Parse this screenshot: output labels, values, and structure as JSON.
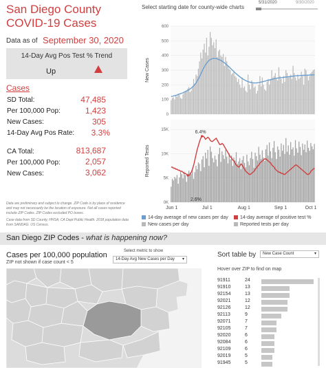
{
  "header": {
    "title_line1": "San Diego County",
    "title_line2": "COVID-19 Cases",
    "asof_label": "Data as of",
    "asof_date": "September 30, 2020"
  },
  "trend": {
    "label": "14-Day Avg Pos Test % Trend",
    "value": "Up",
    "arrow_icon": "triangle-up-icon"
  },
  "cases": {
    "heading": "Cases",
    "rows": [
      {
        "label": "SD Total:",
        "value": "47,485"
      },
      {
        "label": "Per 100,000 Pop:",
        "value": "1,423"
      },
      {
        "label": "New Cases:",
        "value": "305"
      },
      {
        "label": "14-Day Avg Pos Rate:",
        "value": "3.3%"
      }
    ],
    "ca_rows": [
      {
        "label": "CA Total:",
        "value": "813,687"
      },
      {
        "label": "Per 100,000 Pop:",
        "value": "2,057"
      },
      {
        "label": "New Cases:",
        "value": "3,062"
      }
    ]
  },
  "note": {
    "line1": "Data are preliminary and subject to change. ZIP Code is by place of residence and may not necessarily be the location of exposure. Not all cases reported include ZIP Codes. ZIP Codes excluded PO boxes.",
    "line2": "Case data from SD County, HHSA; CA Dept Public Health. 2018 population data from SANDAG. US Census."
  },
  "charts_header": {
    "title": "Select starting date for county-wide charts",
    "slider_start": "5/31/2020",
    "slider_end": "9/30/2020"
  },
  "colors": {
    "accent": "#d03e3e",
    "bar": "#b8b8b8",
    "blue": "#6b9fcf",
    "panel": "#e3e3e3"
  },
  "chart_data": [
    {
      "type": "bar",
      "ylabel": "New Cases",
      "ylim": [
        0,
        600
      ],
      "yticks": [
        "0",
        "100",
        "200",
        "300",
        "400",
        "500",
        "600"
      ],
      "x_start": "2020-05-31",
      "x_end": "2020-09-30",
      "values": [
        95,
        110,
        115,
        100,
        125,
        120,
        140,
        130,
        110,
        105,
        135,
        145,
        155,
        160,
        175,
        185,
        150,
        160,
        190,
        240,
        210,
        270,
        260,
        310,
        360,
        420,
        380,
        440,
        480,
        420,
        520,
        400,
        460,
        560,
        520,
        470,
        490,
        450,
        510,
        390,
        430,
        440,
        400,
        390,
        410,
        330,
        390,
        360,
        330,
        310,
        300,
        270,
        280,
        290,
        260,
        250,
        220,
        240,
        200,
        180,
        250,
        180,
        190,
        160,
        150,
        270,
        200,
        170,
        230,
        210,
        180,
        190,
        140,
        160,
        200,
        260,
        190,
        250,
        200,
        170,
        160,
        220,
        240,
        200,
        240,
        300,
        250,
        260,
        280,
        240,
        230,
        320,
        260,
        240,
        210,
        260,
        220,
        300,
        280,
        250,
        260,
        270,
        240,
        330,
        280,
        250,
        230,
        270,
        240,
        250,
        290,
        260,
        200,
        310,
        300,
        270,
        230,
        260,
        280,
        290,
        300,
        305
      ],
      "series_line": {
        "name": "14-day average of new cases per day",
        "values": [
          120,
          122,
          124,
          126,
          128,
          131,
          134,
          137,
          140,
          143,
          146,
          150,
          154,
          158,
          162,
          167,
          172,
          178,
          185,
          193,
          202,
          213,
          226,
          240,
          256,
          273,
          290,
          307,
          322,
          336,
          348,
          358,
          366,
          372,
          376,
          379,
          380,
          380,
          379,
          377,
          374,
          370,
          366,
          361,
          356,
          350,
          343,
          336,
          329,
          322,
          314,
          306,
          298,
          290,
          282,
          275,
          268,
          261,
          255,
          249,
          243,
          238,
          233,
          229,
          225,
          222,
          219,
          217,
          215,
          214,
          213,
          213,
          213,
          214,
          215,
          217,
          219,
          221,
          223,
          225,
          227,
          229,
          231,
          233,
          235,
          237,
          239,
          241,
          243,
          245,
          246,
          247,
          248,
          249,
          250,
          251,
          252,
          253,
          254,
          255,
          256,
          257,
          258,
          259,
          260,
          261,
          262,
          263,
          263,
          264,
          264,
          265,
          265,
          265,
          266,
          266,
          266,
          267,
          267,
          267,
          268,
          268
        ]
      }
    },
    {
      "type": "bar",
      "ylabel": "Reported Tests",
      "ylim": [
        0,
        17000
      ],
      "yticks": [
        "0K",
        "5K",
        "10K",
        "15K"
      ],
      "xticks": [
        "Jun 1",
        "Jul 1",
        "Aug 1",
        "Sep 1",
        "Oct 1"
      ],
      "annotations": [
        "6.4%",
        "2.6%"
      ],
      "values": [
        3200,
        4800,
        4500,
        5200,
        4900,
        5600,
        3800,
        5100,
        6200,
        5800,
        4900,
        6300,
        5600,
        4200,
        5900,
        6500,
        6100,
        5800,
        6900,
        4800,
        6200,
        7500,
        6800,
        8200,
        7900,
        6400,
        8800,
        9500,
        7200,
        10200,
        9000,
        10800,
        7500,
        11500,
        10400,
        9100,
        8200,
        9600,
        8800,
        7400,
        9900,
        11200,
        8300,
        10500,
        9700,
        8900,
        10800,
        9400,
        8000,
        10100,
        8800,
        9600,
        7500,
        9200,
        8600,
        10300,
        7900,
        8400,
        9100,
        6800,
        8700,
        9500,
        8100,
        7200,
        9800,
        8400,
        7600,
        9100,
        10400,
        8900,
        7100,
        10200,
        9500,
        8600,
        11400,
        9800,
        8900,
        10700,
        9200,
        8500,
        10900,
        11800,
        9600,
        12300,
        10500,
        9100,
        11200,
        12600,
        10300,
        8900,
        11500,
        10800,
        9400,
        12100,
        10600,
        11800,
        9900,
        13200,
        10400,
        11700,
        9800,
        12400,
        10900,
        11300,
        9600,
        12800,
        11100,
        10200,
        12500,
        11400,
        9700,
        12100,
        10800,
        11900,
        10300,
        12700,
        11200,
        10600,
        12200,
        11500,
        10900,
        12000
      ]
    },
    {
      "type": "line",
      "name": "14-day average of positive test %",
      "ylim": [
        0,
        8
      ],
      "values": [
        3.4,
        3.4,
        3.3,
        3.3,
        3.2,
        3.2,
        3.1,
        3.1,
        3.0,
        3.0,
        2.9,
        2.8,
        2.8,
        2.7,
        2.6,
        2.6,
        2.7,
        2.9,
        3.2,
        3.6,
        4.1,
        4.6,
        5.1,
        5.5,
        5.9,
        6.2,
        6.4,
        6.4,
        6.3,
        6.1,
        6.2,
        6.3,
        6.2,
        6.0,
        5.9,
        5.9,
        6.0,
        6.1,
        6.2,
        6.0,
        5.8,
        5.6,
        5.6,
        5.7,
        5.6,
        5.4,
        5.2,
        5.0,
        4.8,
        4.6,
        4.4,
        4.3,
        4.1,
        4.0,
        3.8,
        3.6,
        3.5,
        3.4,
        3.5,
        3.7,
        3.6,
        3.4,
        3.2,
        3.0,
        2.9,
        2.8,
        2.7,
        2.7,
        2.8,
        2.9,
        3.0,
        3.2,
        3.3,
        3.5,
        3.6,
        3.8,
        3.9,
        4.0,
        4.1,
        4.2,
        4.2,
        4.1,
        4.0,
        3.9,
        3.8,
        3.6,
        3.5,
        3.4,
        3.2,
        3.1,
        3.0,
        2.9,
        2.9,
        2.8,
        2.8,
        2.7,
        2.7,
        2.8,
        2.9,
        3.0,
        3.1,
        3.2,
        3.3,
        3.4,
        3.5,
        3.6,
        3.6,
        3.5,
        3.4,
        3.3,
        3.2,
        3.1,
        3.0,
        2.9,
        2.8,
        2.7,
        2.7,
        2.8,
        3.0,
        3.1,
        3.2,
        3.3
      ]
    }
  ],
  "legend": [
    {
      "label": "14-day average of new cases per day",
      "color": "#6b9fcf"
    },
    {
      "label": "14-day average of positive test %",
      "color": "#d03e3e"
    },
    {
      "label": "New cases per day",
      "color": "#b8b8b8"
    },
    {
      "label": "Reported tests per day",
      "color": "#b8b8b8"
    }
  ],
  "zip_section": {
    "title": "San Diego ZIP Codes - ",
    "title_em": "what is happening now?",
    "per_label": "Cases per 100,000 population",
    "not_shown": "ZIP not shown if case count < 5",
    "metric_label": "Select metric to show",
    "metric_value": "14-Day Avg New Cases per Day",
    "sort_label": "Sort table by",
    "sort_value": "New Case Count",
    "hover_hint": "Hover over ZIP to find on map"
  },
  "zip_rows": [
    {
      "zip": "91911",
      "count": "24",
      "frac": 1.0
    },
    {
      "zip": "91910",
      "count": "13",
      "frac": 0.54
    },
    {
      "zip": "92154",
      "count": "13",
      "frac": 0.54
    },
    {
      "zip": "92021",
      "count": "12",
      "frac": 0.5
    },
    {
      "zip": "92126",
      "count": "12",
      "frac": 0.5
    },
    {
      "zip": "92113",
      "count": "9",
      "frac": 0.38
    },
    {
      "zip": "92071",
      "count": "7",
      "frac": 0.29
    },
    {
      "zip": "92105",
      "count": "7",
      "frac": 0.29
    },
    {
      "zip": "92020",
      "count": "6",
      "frac": 0.25
    },
    {
      "zip": "92084",
      "count": "6",
      "frac": 0.25
    },
    {
      "zip": "92109",
      "count": "6",
      "frac": 0.25
    },
    {
      "zip": "92019",
      "count": "5",
      "frac": 0.21
    },
    {
      "zip": "91945",
      "count": "5",
      "frac": 0.21
    }
  ]
}
